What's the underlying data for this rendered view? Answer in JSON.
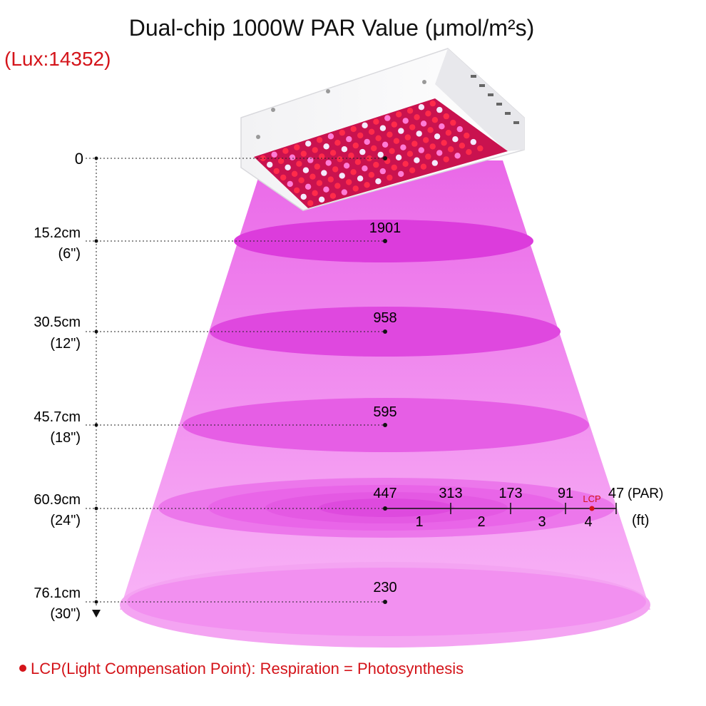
{
  "title": "Dual-chip 1000W PAR Value (μmol/m²s)",
  "lux_label": "(Lux:14352)",
  "heights": [
    {
      "cm": "0",
      "inch": ""
    },
    {
      "cm": "15.2cm",
      "inch": "(6\")"
    },
    {
      "cm": "30.5cm",
      "inch": "(12\")"
    },
    {
      "cm": "45.7cm",
      "inch": "(18\")"
    },
    {
      "cm": "60.9cm",
      "inch": "(24\")"
    },
    {
      "cm": "76.1cm",
      "inch": "(30\")"
    }
  ],
  "par_center": [
    "1901",
    "958",
    "595",
    "447",
    "230"
  ],
  "horizontal_par": [
    "313",
    "173",
    "91",
    "47"
  ],
  "par_unit": "(PAR)",
  "ft_ticks": [
    "1",
    "2",
    "3",
    "4"
  ],
  "ft_unit": "(ft)",
  "lcp_marker": "LCP",
  "footnote": "LCP(Light Compensation Point): Respiration = Photosynthesis",
  "colors": {
    "light_cone": "#f38bf0",
    "ellipse": "#e24be2",
    "accent_red": "#d4141a",
    "led_red": "#ff2b4a",
    "led_pink": "#ff7bd5",
    "led_white": "#f5e9ff"
  },
  "chart_data": {
    "type": "diagram",
    "title": "Dual-chip 1000W PAR Value (μmol/m²s)",
    "lux": 14352,
    "distance_vs_par": [
      {
        "cm": 15.2,
        "inch": 6,
        "par": 1901
      },
      {
        "cm": 30.5,
        "inch": 12,
        "par": 958
      },
      {
        "cm": 45.7,
        "inch": 18,
        "par": 595
      },
      {
        "cm": 60.9,
        "inch": 24,
        "par": 447
      },
      {
        "cm": 76.1,
        "inch": 30,
        "par": 230
      }
    ],
    "horizontal_at_60_9cm": [
      {
        "ft": 0,
        "par": 447
      },
      {
        "ft": 1,
        "par": 313
      },
      {
        "ft": 2,
        "par": 173
      },
      {
        "ft": 3,
        "par": 91
      },
      {
        "ft": 4,
        "par": 47
      }
    ]
  }
}
